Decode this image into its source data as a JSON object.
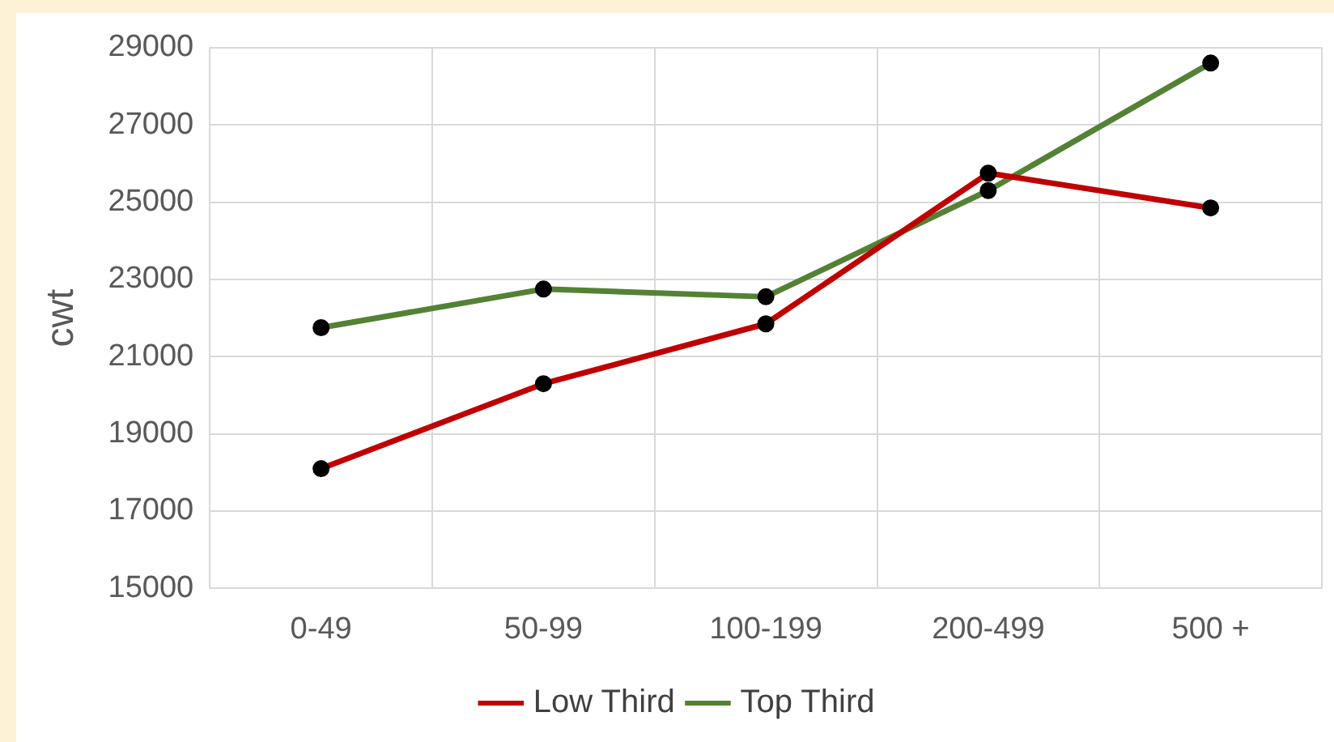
{
  "chart_data": {
    "type": "line",
    "ylabel": "cwt",
    "categories": [
      "0-49",
      "50-99",
      "100-199",
      "200-499",
      "500 +"
    ],
    "series": [
      {
        "name": "Low Third",
        "color": "#c00000",
        "values": [
          18100,
          20300,
          21850,
          25750,
          24850
        ]
      },
      {
        "name": "Top Third",
        "color": "#548235",
        "values": [
          21750,
          22750,
          22550,
          25300,
          28600
        ]
      }
    ],
    "ylim": [
      15000,
      29000
    ],
    "yticks": [
      15000,
      17000,
      19000,
      21000,
      23000,
      25000,
      27000,
      29000
    ],
    "grid": true,
    "legend": "bottom",
    "marker": "circle",
    "line_style": "solid"
  }
}
